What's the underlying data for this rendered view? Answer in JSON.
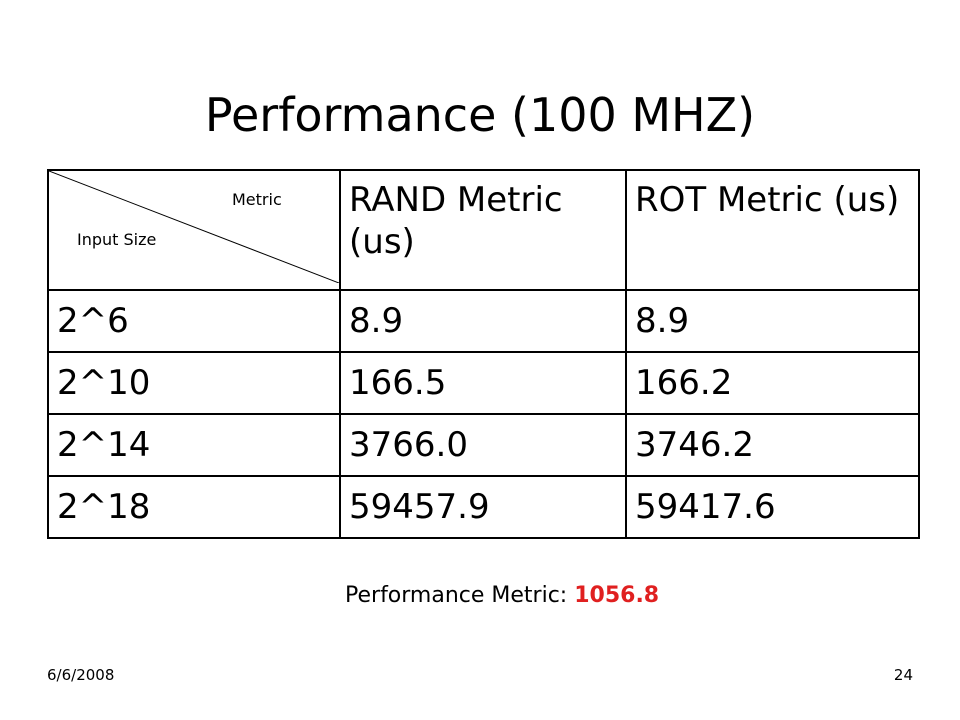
{
  "title": "Performance (100 MHZ)",
  "table": {
    "corner": {
      "column_label": "Metric",
      "row_label": "Input Size"
    },
    "headers": [
      "RAND Metric (us)",
      "ROT Metric (us)"
    ],
    "rows": [
      [
        "2^6",
        "8.9",
        "8.9"
      ],
      [
        "2^10",
        "166.5",
        "166.2"
      ],
      [
        "2^14",
        "3766.0",
        "3746.2"
      ],
      [
        "2^18",
        "59457.9",
        "59417.6"
      ]
    ]
  },
  "summary": {
    "label": "Performance Metric:",
    "value": "1056.8"
  },
  "footer": {
    "date": "6/6/2008",
    "page": "24"
  }
}
